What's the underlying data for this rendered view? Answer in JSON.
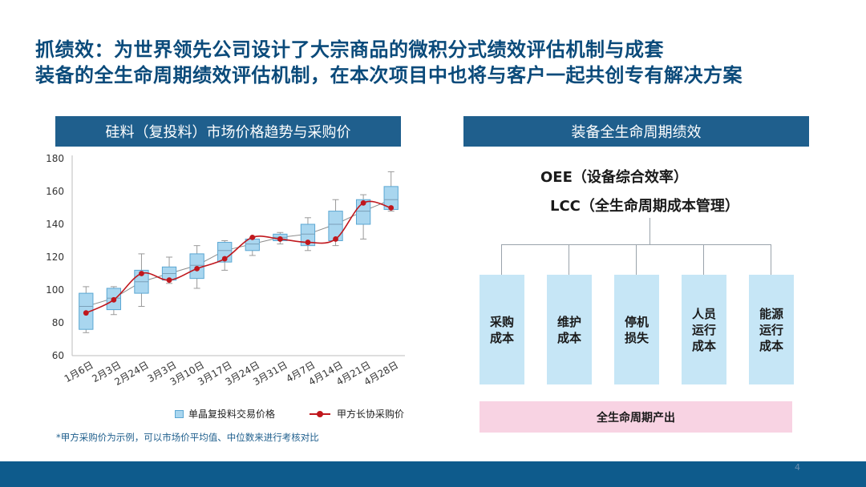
{
  "title": {
    "line1": "抓绩效：为世界领先公司设计了大宗商品的微积分式绩效评估机制与成套",
    "line2": "装备的全生命周期绩效评估机制，在本次项目中也将与客户一起共创专有解决方案"
  },
  "left_panel": {
    "header": "硅料（复投料）市场价格趋势与采购价",
    "legend_box": "单晶复投料交易价格",
    "legend_line": "甲方长协采购价",
    "footnote": "*甲方采购价为示例，可以市场价平均值、中位数来进行考核对比"
  },
  "right_panel": {
    "header": "装备全生命周期绩效",
    "metric_oee": "OEE（设备综合效率）",
    "metric_lcc": "LCC（全生命周期成本管理）",
    "boxes": [
      "采购成本",
      "维护成本",
      "停机损失",
      "人员运行成本",
      "能源运行成本"
    ],
    "output": "全生命周期产出"
  },
  "page_number": "4",
  "colors": {
    "title": "#0a4a7a",
    "header_bg": "#1f5f8d",
    "box_fill": "#a9d6ef",
    "box_stroke": "#5ba7d3",
    "purchase_line": "#c0171d",
    "trend_line": "#8c8c8c",
    "right_box": "#c6e6f6",
    "output_bar": "#f8d3e3",
    "bottom_band": "#0e5b8c"
  },
  "chart_data": {
    "type": "box",
    "categories": [
      "1月6日",
      "2月3日",
      "2月24日",
      "3月3日",
      "3月10日",
      "3月17日",
      "3月24日",
      "3月31日",
      "4月7日",
      "4月14日",
      "4月21日",
      "4月28日"
    ],
    "ylim": [
      60,
      180
    ],
    "yticks": [
      60,
      80,
      100,
      120,
      140,
      160,
      180
    ],
    "grid": false,
    "series": [
      {
        "name": "单晶复投料交易价格",
        "kind": "box",
        "whisker_low": [
          74,
          85,
          90,
          104,
          101,
          112,
          121,
          128,
          124,
          127,
          131,
          148
        ],
        "q1": [
          76,
          88,
          98,
          106,
          107,
          117,
          124,
          130,
          127,
          130,
          140,
          149
        ],
        "median": [
          90,
          95,
          105,
          110,
          115,
          124,
          128,
          132,
          134,
          140,
          148,
          155
        ],
        "q3": [
          98,
          101,
          112,
          114,
          122,
          129,
          131,
          134,
          140,
          148,
          155,
          163
        ],
        "whisker_high": [
          102,
          102,
          122,
          120,
          127,
          130,
          132,
          135,
          144,
          155,
          158,
          172
        ]
      },
      {
        "name": "甲方长协采购价",
        "kind": "line",
        "values": [
          86,
          94,
          110,
          106,
          113,
          119,
          132,
          131,
          129,
          131,
          153,
          150
        ]
      }
    ]
  }
}
